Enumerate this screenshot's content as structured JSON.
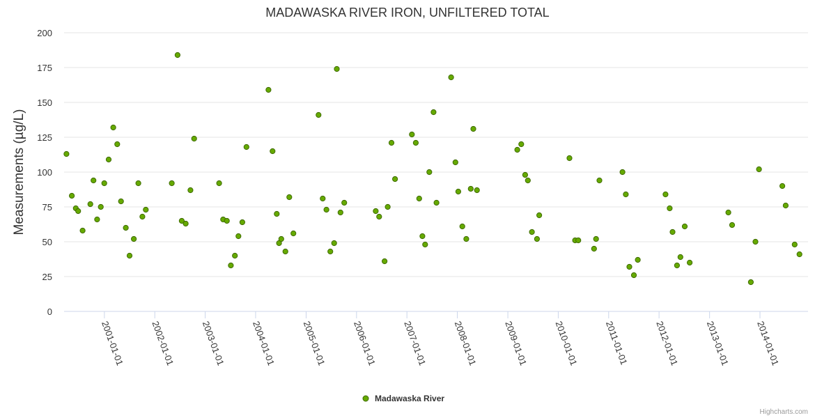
{
  "chart_data": {
    "type": "scatter",
    "title": "MADAWASKA RIVER IRON, UNFILTERED TOTAL",
    "ylabel": "Measurements (µg/L)",
    "xlabel": "",
    "ylim": [
      0,
      200
    ],
    "yticks": [
      0,
      25,
      50,
      75,
      100,
      125,
      150,
      175,
      200
    ],
    "xlim": [
      "2000-03-15",
      "2014-12-15"
    ],
    "xticks": [
      "2001-01-01",
      "2002-01-01",
      "2003-01-01",
      "2004-01-01",
      "2005-01-01",
      "2006-01-01",
      "2007-01-01",
      "2008-01-01",
      "2009-01-01",
      "2010-01-01",
      "2011-01-01",
      "2012-01-01",
      "2013-01-01",
      "2014-01-01"
    ],
    "grid": true,
    "legend": {
      "position": "bottom-center"
    },
    "colors": {
      "marker_fill": "#66aa00",
      "marker_stroke": "#3e6a00",
      "grid": "#e6e6e6"
    },
    "series": [
      {
        "name": "Madawaska River",
        "points": [
          [
            "2000-04-01",
            113
          ],
          [
            "2000-05-10",
            83
          ],
          [
            "2000-06-08",
            74
          ],
          [
            "2000-06-25",
            72
          ],
          [
            "2000-07-27",
            58
          ],
          [
            "2000-09-21",
            77
          ],
          [
            "2000-10-14",
            94
          ],
          [
            "2000-11-09",
            66
          ],
          [
            "2000-12-06",
            75
          ],
          [
            "2000-12-31",
            92
          ],
          [
            "2001-02-01",
            109
          ],
          [
            "2001-03-06",
            132
          ],
          [
            "2001-04-04",
            120
          ],
          [
            "2001-05-01",
            79
          ],
          [
            "2001-06-05",
            60
          ],
          [
            "2001-07-02",
            40
          ],
          [
            "2001-08-02",
            52
          ],
          [
            "2001-09-04",
            92
          ],
          [
            "2001-10-03",
            68
          ],
          [
            "2001-10-28",
            73
          ],
          [
            "2002-05-04",
            92
          ],
          [
            "2002-06-15",
            184
          ],
          [
            "2002-07-15",
            65
          ],
          [
            "2002-08-13",
            63
          ],
          [
            "2002-09-16",
            87
          ],
          [
            "2002-10-13",
            124
          ],
          [
            "2003-04-12",
            92
          ],
          [
            "2003-05-11",
            66
          ],
          [
            "2003-06-07",
            65
          ],
          [
            "2003-07-06",
            33
          ],
          [
            "2003-08-04",
            40
          ],
          [
            "2003-08-30",
            54
          ],
          [
            "2003-09-27",
            64
          ],
          [
            "2003-10-27",
            118
          ],
          [
            "2004-04-03",
            159
          ],
          [
            "2004-05-03",
            115
          ],
          [
            "2004-06-02",
            70
          ],
          [
            "2004-06-19",
            49
          ],
          [
            "2004-07-05",
            52
          ],
          [
            "2004-08-04",
            43
          ],
          [
            "2004-09-01",
            82
          ],
          [
            "2004-10-01",
            56
          ],
          [
            "2005-04-01",
            141
          ],
          [
            "2005-05-01",
            81
          ],
          [
            "2005-05-28",
            73
          ],
          [
            "2005-06-25",
            43
          ],
          [
            "2005-07-23",
            49
          ],
          [
            "2005-08-11",
            174
          ],
          [
            "2005-09-07",
            71
          ],
          [
            "2005-10-04",
            78
          ],
          [
            "2006-05-20",
            72
          ],
          [
            "2006-06-14",
            68
          ],
          [
            "2006-07-23",
            36
          ],
          [
            "2006-08-15",
            75
          ],
          [
            "2006-09-11",
            121
          ],
          [
            "2006-10-07",
            95
          ],
          [
            "2007-02-06",
            127
          ],
          [
            "2007-03-06",
            121
          ],
          [
            "2007-03-31",
            81
          ],
          [
            "2007-04-23",
            54
          ],
          [
            "2007-05-13",
            48
          ],
          [
            "2007-06-12",
            100
          ],
          [
            "2007-07-13",
            143
          ],
          [
            "2007-08-03",
            78
          ],
          [
            "2007-11-17",
            168
          ],
          [
            "2007-12-18",
            107
          ],
          [
            "2008-01-08",
            86
          ],
          [
            "2008-02-06",
            61
          ],
          [
            "2008-03-06",
            52
          ],
          [
            "2008-04-07",
            88
          ],
          [
            "2008-04-26",
            131
          ],
          [
            "2008-05-22",
            87
          ],
          [
            "2009-03-10",
            116
          ],
          [
            "2009-04-08",
            120
          ],
          [
            "2009-05-06",
            98
          ],
          [
            "2009-05-26",
            94
          ],
          [
            "2009-06-24",
            57
          ],
          [
            "2009-07-31",
            52
          ],
          [
            "2009-08-16",
            69
          ],
          [
            "2010-03-23",
            110
          ],
          [
            "2010-05-03",
            51
          ],
          [
            "2010-05-26",
            51
          ],
          [
            "2010-09-17",
            45
          ],
          [
            "2010-10-02",
            52
          ],
          [
            "2010-10-26",
            94
          ],
          [
            "2011-04-11",
            100
          ],
          [
            "2011-05-05",
            84
          ],
          [
            "2011-05-31",
            32
          ],
          [
            "2011-07-03",
            26
          ],
          [
            "2011-07-31",
            37
          ],
          [
            "2012-02-17",
            84
          ],
          [
            "2012-03-18",
            74
          ],
          [
            "2012-04-08",
            57
          ],
          [
            "2012-05-10",
            33
          ],
          [
            "2012-06-04",
            39
          ],
          [
            "2012-07-05",
            61
          ],
          [
            "2012-08-10",
            35
          ],
          [
            "2013-05-17",
            71
          ],
          [
            "2013-06-13",
            62
          ],
          [
            "2013-10-27",
            21
          ],
          [
            "2013-11-29",
            50
          ],
          [
            "2013-12-25",
            102
          ],
          [
            "2014-06-12",
            90
          ],
          [
            "2014-07-06",
            76
          ],
          [
            "2014-09-09",
            48
          ],
          [
            "2014-10-14",
            41
          ]
        ]
      }
    ]
  },
  "credits": "Highcharts.com"
}
